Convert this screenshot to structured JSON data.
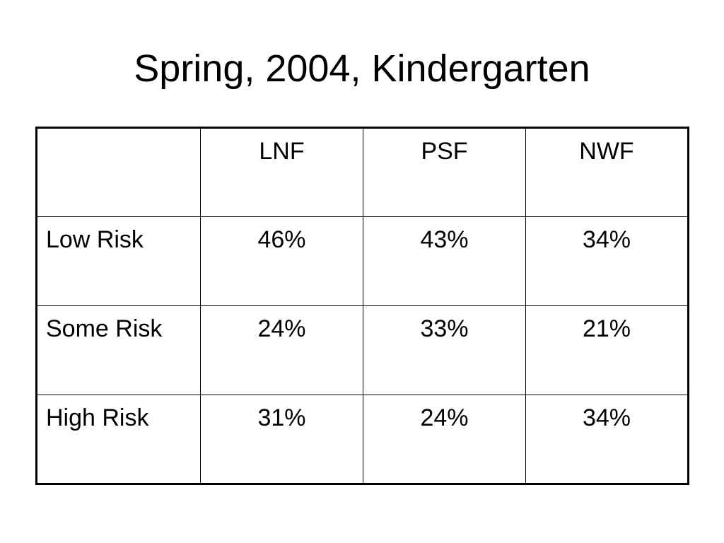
{
  "title": "Spring, 2004, Kindergarten",
  "table": {
    "header": [
      "LNF",
      "PSF",
      "NWF"
    ],
    "rows": [
      [
        "Low Risk",
        "46%",
        "43%",
        "34%"
      ],
      [
        "Some Risk",
        "24%",
        "33%",
        "21%"
      ],
      [
        "High Risk",
        "31%",
        "24%",
        "34%"
      ]
    ]
  }
}
